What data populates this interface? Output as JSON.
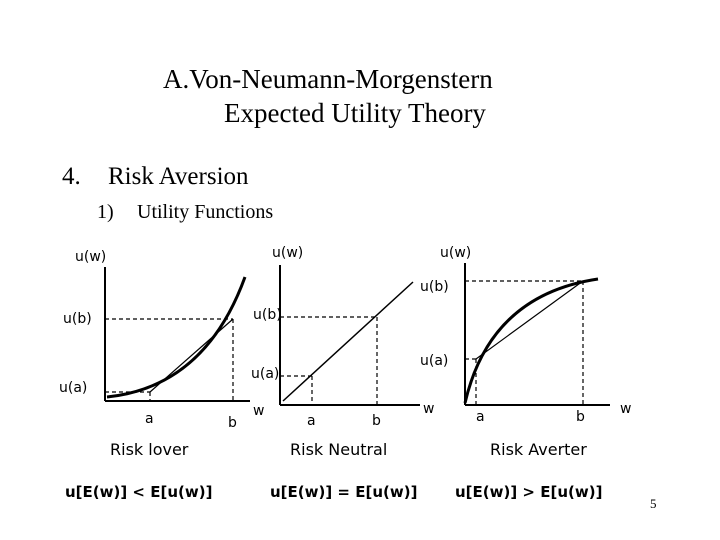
{
  "title": {
    "line1": "A.Von-Neumann-Morgenstern",
    "line2": "Expected Utility Theory"
  },
  "section": {
    "number": "4.",
    "label": "Risk Aversion"
  },
  "subsection": {
    "number": "1)",
    "label": "Utility Functions"
  },
  "panels": [
    {
      "y_axis": "u(w)",
      "upper_label": "u(b)",
      "lower_label": "u(a)",
      "x_a": "a",
      "x_b": "b",
      "x_axis": "w",
      "caption": "Risk lover",
      "formula": "u[E(w)] < E[u(w)]"
    },
    {
      "y_axis": "u(w)",
      "upper_label": "u(b)",
      "lower_label": "u(a)",
      "x_a": "a",
      "x_b": "b",
      "x_axis": "w",
      "caption": "Risk Neutral",
      "formula": "u[E(w)] = E[u(w)]"
    },
    {
      "y_axis": "u(w)",
      "upper_label": "u(b)",
      "lower_label": "u(a)",
      "x_a": "a",
      "x_b": "b",
      "x_axis": "w",
      "caption": "Risk Averter",
      "formula": "u[E(w)] > E[u(w)]"
    }
  ],
  "page_number": "5"
}
